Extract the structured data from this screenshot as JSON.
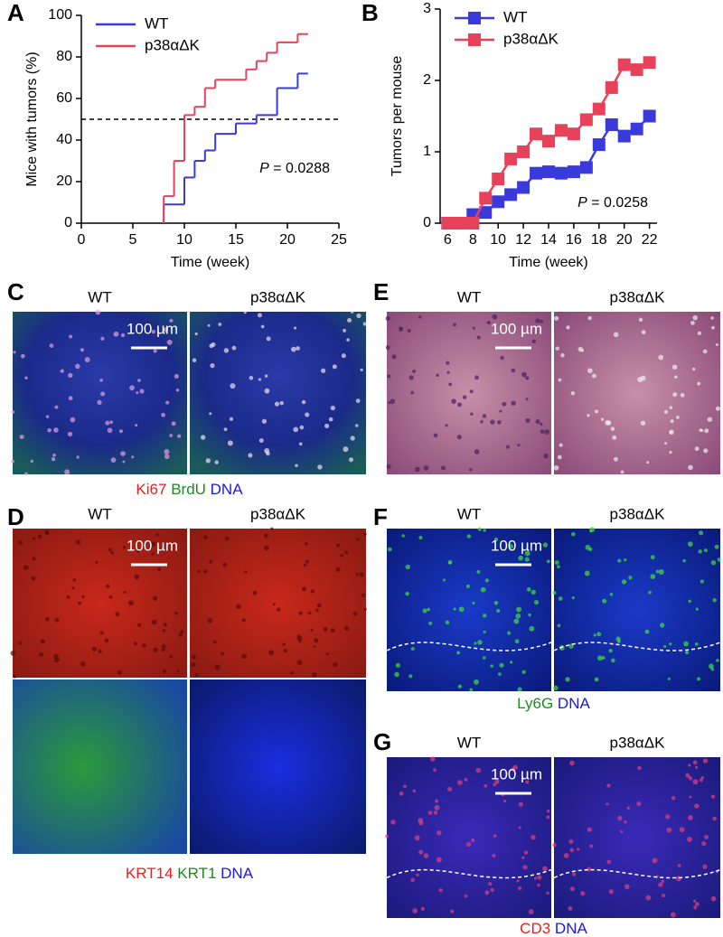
{
  "chart_data": [
    {
      "type": "step",
      "panel": "A",
      "xlabel": "Time (week)",
      "ylabel": "Mice with tumors (%)",
      "xlim": [
        0,
        25
      ],
      "xticks": [
        0,
        5,
        10,
        15,
        20,
        25
      ],
      "ylim": [
        0,
        100
      ],
      "yticks": [
        0,
        20,
        40,
        60,
        80,
        100
      ],
      "hline": 50,
      "legend": "upper left",
      "annotation": {
        "italic": "P",
        "text": "= 0.0288"
      },
      "series": [
        {
          "name": "WT",
          "color": "#3a3adb",
          "x": [
            8,
            8,
            10,
            11,
            12,
            13,
            15,
            17,
            19,
            21,
            22
          ],
          "values": [
            0,
            9,
            22,
            30,
            35,
            43,
            48,
            52,
            65,
            72,
            72
          ]
        },
        {
          "name": "p38αΔK",
          "color": "#e8425a",
          "x": [
            8,
            8,
            9,
            10,
            11,
            12,
            13,
            16,
            17,
            18,
            19,
            21,
            22
          ],
          "values": [
            0,
            13,
            30,
            52,
            56,
            65,
            69,
            74,
            78,
            82,
            87,
            91,
            91
          ]
        }
      ]
    },
    {
      "type": "line",
      "panel": "B",
      "xlabel": "Time (week)",
      "ylabel": "Tumors per mouse",
      "xlim": [
        5.4,
        22.6
      ],
      "xticks": [
        6,
        8,
        10,
        12,
        14,
        16,
        18,
        20,
        22
      ],
      "ylim": [
        0,
        3
      ],
      "yticks": [
        0,
        1,
        2,
        3
      ],
      "legend": "upper left",
      "annotation": {
        "italic": "P",
        "text": "= 0.0258"
      },
      "x": [
        6,
        7,
        8,
        9,
        10,
        11,
        12,
        13,
        14,
        15,
        16,
        17,
        18,
        19,
        20,
        21,
        22
      ],
      "series": [
        {
          "name": "WT",
          "color": "#3a3adb",
          "values": [
            0,
            0,
            0.12,
            0.15,
            0.3,
            0.4,
            0.5,
            0.7,
            0.72,
            0.7,
            0.72,
            0.78,
            1.1,
            1.38,
            1.22,
            1.32,
            1.5
          ]
        },
        {
          "name": "p38αΔK",
          "color": "#e8425a",
          "values": [
            0,
            0,
            0,
            0.35,
            0.62,
            0.9,
            1.0,
            1.25,
            1.15,
            1.3,
            1.25,
            1.45,
            1.6,
            1.9,
            2.22,
            2.15,
            2.25
          ]
        }
      ]
    }
  ],
  "panels": [
    {
      "letter": "C",
      "columns": [
        "WT",
        "p38αΔK"
      ],
      "scale_bar": "100 µm",
      "caption": [
        {
          "text": "Ki67",
          "color": "#e8201c"
        },
        {
          "text": "BrdU",
          "color": "#1f8a1f"
        },
        {
          "text": "DNA",
          "color": "#1a1ae0"
        }
      ]
    },
    {
      "letter": "D",
      "columns": [
        "WT",
        "p38αΔK"
      ],
      "scale_bar": "100 µm",
      "caption": [
        {
          "text": "KRT14",
          "color": "#e8201c"
        },
        {
          "text": "KRT1",
          "color": "#1f8a1f"
        },
        {
          "text": "DNA",
          "color": "#1a1ae0"
        }
      ]
    },
    {
      "letter": "E",
      "columns": [
        "WT",
        "p38αΔK"
      ],
      "scale_bar": "100 µm",
      "caption": []
    },
    {
      "letter": "F",
      "columns": [
        "WT",
        "p38αΔK"
      ],
      "scale_bar": "100 µm",
      "caption": [
        {
          "text": "Ly6G",
          "color": "#1f8a1f"
        },
        {
          "text": "DNA",
          "color": "#1a1ae0"
        }
      ]
    },
    {
      "letter": "G",
      "columns": [
        "WT",
        "p38αΔK"
      ],
      "scale_bar": "100 µm",
      "caption": [
        {
          "text": "CD3",
          "color": "#e8201c"
        },
        {
          "text": "DNA",
          "color": "#1a1ae0"
        }
      ]
    }
  ]
}
